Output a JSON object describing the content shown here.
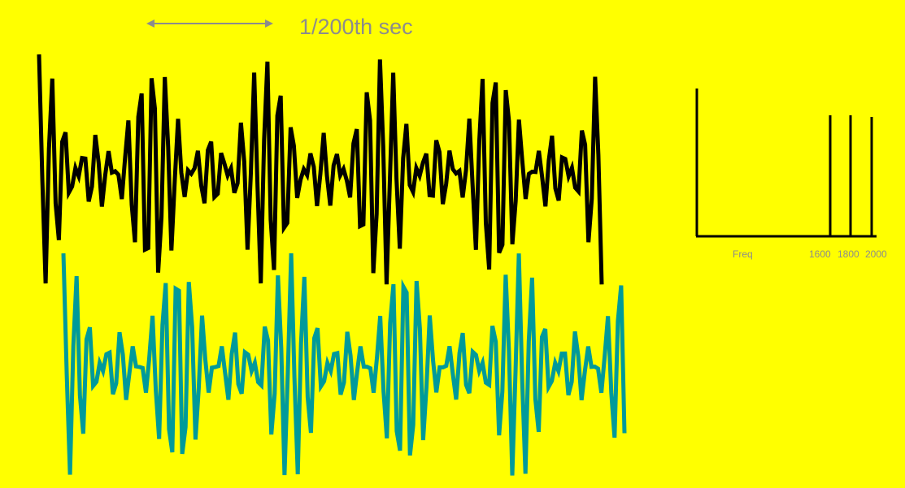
{
  "period_label": "1/200th sec",
  "spectrum": {
    "xlabel": "Freq",
    "tick_labels": [
      "1600",
      "1800",
      "2000"
    ]
  },
  "colors": {
    "background": "#ffff00",
    "original_wave": "#000000",
    "reconstructed_wave": "#009a9a",
    "annotation": "#8c8c8c"
  }
}
